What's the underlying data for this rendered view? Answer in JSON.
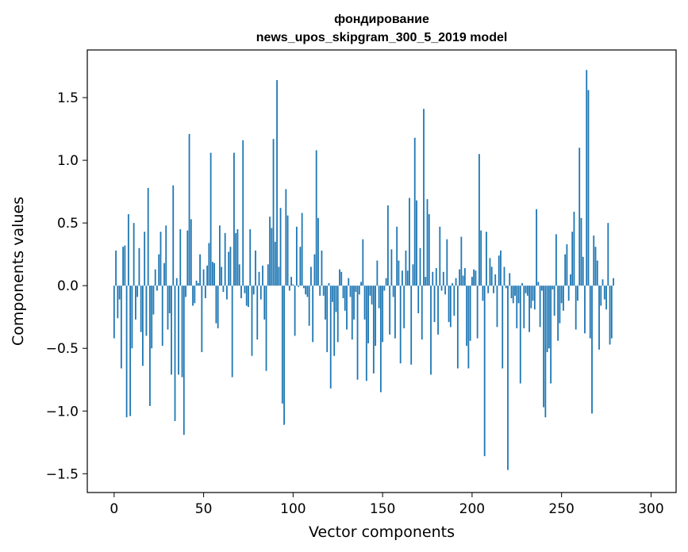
{
  "chart_data": {
    "type": "bar",
    "title_line1": "фондирование",
    "title_line2": "news_upos_skipgram_300_5_2019 model",
    "xlabel": "Vector components",
    "ylabel": "Components values",
    "xlim": [
      -15,
      314
    ],
    "ylim": [
      -1.65,
      1.88
    ],
    "xticks": [
      0,
      50,
      100,
      150,
      200,
      250,
      300
    ],
    "xtick_labels": [
      "0",
      "50",
      "100",
      "150",
      "200",
      "250",
      "300"
    ],
    "yticks": [
      -1.5,
      -1.0,
      -0.5,
      0.0,
      0.5,
      1.0,
      1.5
    ],
    "ytick_labels": [
      "−1.5",
      "−1.0",
      "−0.5",
      "0.0",
      "0.5",
      "1.0",
      "1.5"
    ],
    "bar_color": "#1f77b4",
    "values": [
      -0.42,
      0.28,
      -0.26,
      -0.11,
      -0.66,
      0.31,
      0.32,
      -1.05,
      0.57,
      -1.04,
      -0.5,
      0.5,
      -0.27,
      -0.09,
      0.3,
      -0.37,
      -0.64,
      0.43,
      -0.4,
      0.78,
      -0.96,
      -0.5,
      -0.23,
      0.13,
      -0.04,
      0.25,
      0.43,
      -0.48,
      0.18,
      0.48,
      -0.35,
      -0.22,
      -0.71,
      0.8,
      -1.08,
      0.06,
      -0.71,
      0.45,
      -0.73,
      -1.19,
      -0.09,
      0.44,
      1.21,
      0.53,
      -0.16,
      -0.14,
      0.04,
      0.02,
      0.25,
      -0.53,
      0.13,
      -0.1,
      0.16,
      0.34,
      1.06,
      0.19,
      0.18,
      -0.3,
      -0.34,
      0.48,
      0.15,
      -0.05,
      0.42,
      -0.11,
      0.27,
      0.31,
      -0.73,
      1.06,
      0.42,
      0.45,
      0.17,
      -0.1,
      1.16,
      -0.06,
      -0.16,
      -0.17,
      0.45,
      -0.56,
      -0.07,
      0.28,
      -0.43,
      0.11,
      -0.11,
      0.16,
      -0.27,
      -0.68,
      0.17,
      0.55,
      0.46,
      1.17,
      0.35,
      1.64,
      0.15,
      0.62,
      -0.94,
      -1.11,
      0.77,
      0.56,
      -0.04,
      0.07,
      0.01,
      -0.4,
      0.47,
      -0.01,
      0.31,
      0.58,
      -0.02,
      -0.07,
      -0.09,
      -0.32,
      0.15,
      -0.45,
      0.25,
      1.08,
      0.54,
      -0.08,
      0.28,
      -0.08,
      -0.27,
      -0.53,
      0.02,
      -0.82,
      -0.13,
      -0.56,
      -0.21,
      -0.45,
      0.13,
      0.11,
      -0.1,
      -0.2,
      -0.35,
      0.06,
      -0.09,
      -0.43,
      -0.27,
      -0.05,
      -0.75,
      -0.07,
      0.03,
      0.37,
      -0.27,
      -0.76,
      -0.46,
      -0.08,
      -0.15,
      -0.7,
      -0.48,
      0.2,
      -0.18,
      -0.85,
      -0.45,
      -0.04,
      0.06,
      0.64,
      -0.39,
      0.29,
      -0.09,
      -0.42,
      0.47,
      0.2,
      -0.62,
      0.12,
      -0.34,
      0.28,
      0.12,
      0.7,
      -0.63,
      0.17,
      1.18,
      0.68,
      -0.22,
      0.3,
      -0.43,
      1.41,
      0.07,
      0.69,
      0.57,
      -0.71,
      0.11,
      -0.29,
      0.14,
      -0.39,
      0.47,
      -0.04,
      0.11,
      -0.07,
      0.37,
      -0.29,
      -0.33,
      0.02,
      -0.24,
      0.06,
      -0.66,
      0.13,
      0.39,
      0.08,
      0.14,
      -0.48,
      -0.66,
      -0.44,
      0.07,
      0.13,
      0.12,
      -0.42,
      1.05,
      0.44,
      -0.12,
      -1.36,
      0.43,
      -0.06,
      0.22,
      0.15,
      -0.06,
      0.09,
      -0.33,
      0.24,
      0.28,
      -0.66,
      0.15,
      -0.02,
      -1.47,
      0.1,
      -0.1,
      -0.14,
      -0.08,
      -0.34,
      -0.14,
      -0.78,
      0.02,
      -0.34,
      -0.06,
      -0.08,
      -0.37,
      -0.18,
      -0.12,
      -0.19,
      0.61,
      0.03,
      -0.33,
      -0.04,
      -0.97,
      -1.05,
      -0.53,
      -0.5,
      -0.78,
      -0.03,
      -0.24,
      0.41,
      -0.44,
      -0.3,
      -0.14,
      -0.2,
      0.25,
      0.33,
      -0.12,
      0.09,
      0.43,
      0.59,
      -0.35,
      -0.12,
      1.1,
      0.54,
      0.23,
      -0.38,
      1.72,
      1.56,
      -0.42,
      -1.02,
      0.4,
      0.31,
      0.2,
      -0.51,
      -0.16,
      0.05,
      -0.11,
      -0.19,
      0.5,
      -0.47,
      -0.42,
      0.06
    ]
  }
}
